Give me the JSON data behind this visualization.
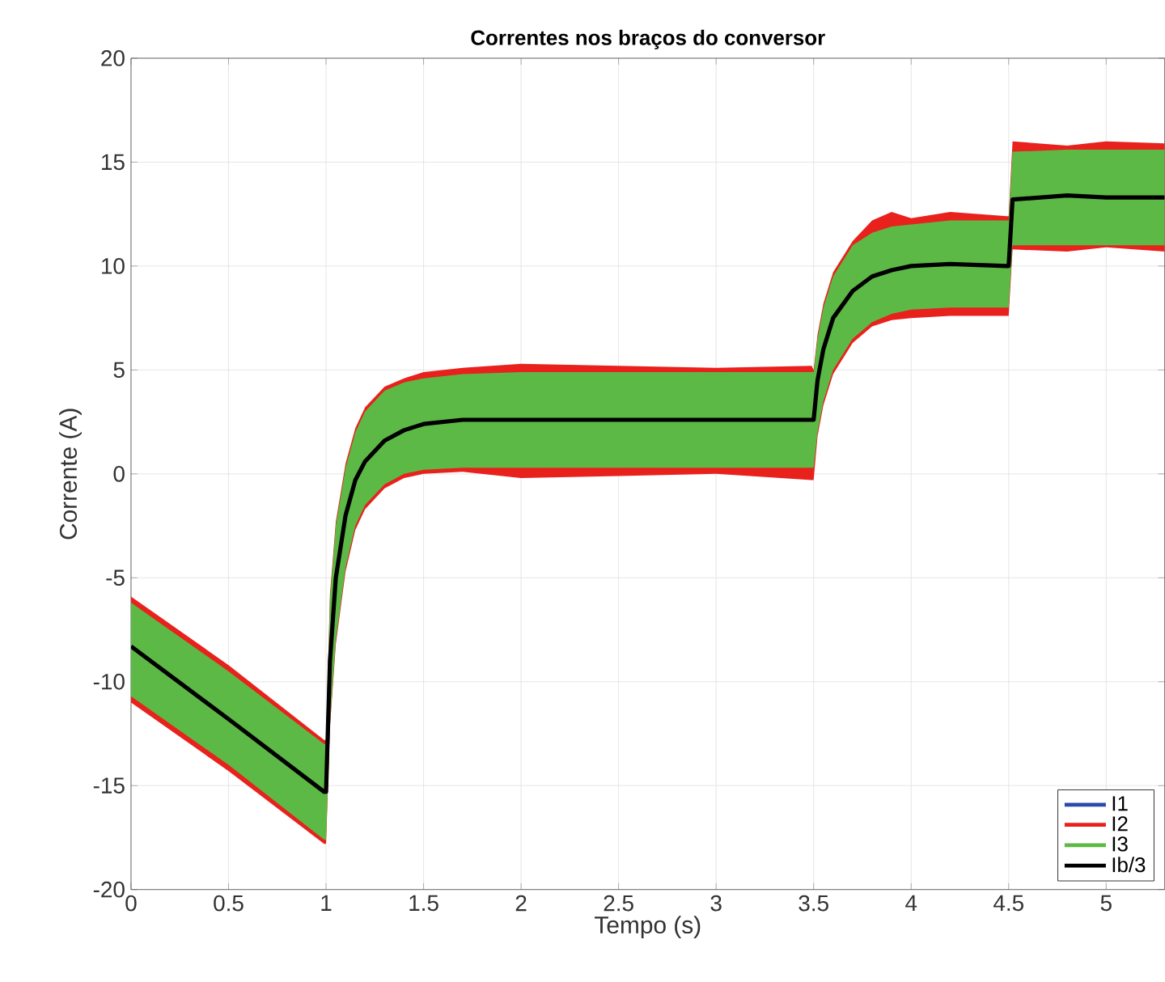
{
  "chart_data": {
    "type": "line",
    "title": "Correntes nos braços do conversor",
    "xlabel": "Tempo (s)",
    "ylabel": "Corrente (A)",
    "x": [
      0,
      0.5,
      0.99,
      1.0,
      1.02,
      1.05,
      1.1,
      1.15,
      1.2,
      1.3,
      1.4,
      1.5,
      1.7,
      2,
      2.5,
      3,
      3.49,
      3.5,
      3.52,
      3.55,
      3.6,
      3.7,
      3.8,
      3.9,
      4,
      4.2,
      4.49,
      4.5,
      4.52,
      4.8,
      5.0,
      5.3
    ],
    "series": [
      {
        "name": "I1",
        "color": "#2b4bab",
        "values": [
          null,
          null,
          null,
          null,
          null,
          null,
          null,
          null,
          null,
          null,
          null,
          null,
          null,
          null,
          null,
          null,
          null,
          null,
          null,
          null,
          null,
          null,
          null,
          null,
          null,
          null,
          null,
          null,
          null,
          null,
          null,
          null
        ]
      },
      {
        "name": "I2",
        "color": "#e8211d",
        "values": [
          null,
          null,
          null,
          null,
          null,
          null,
          null,
          null,
          null,
          null,
          null,
          null,
          null,
          null,
          null,
          null,
          null,
          null,
          null,
          null,
          null,
          null,
          null,
          null,
          null,
          null,
          null,
          null,
          null,
          null,
          null,
          null
        ],
        "upper": [
          -5.9,
          -9.2,
          -12.8,
          -12.8,
          -5.8,
          -2.3,
          0.5,
          2.2,
          3.2,
          4.2,
          4.6,
          4.9,
          5.1,
          5.3,
          5.2,
          5.1,
          5.2,
          5.0,
          6.7,
          8.2,
          9.7,
          11.2,
          12.2,
          12.6,
          12.3,
          12.6,
          12.4,
          12.4,
          16.0,
          15.8,
          16.0,
          15.9
        ],
        "lower": [
          -11.0,
          -14.3,
          -17.8,
          -17.8,
          -12.2,
          -8.2,
          -4.7,
          -2.7,
          -1.7,
          -0.7,
          -0.2,
          0.0,
          0.1,
          -0.2,
          -0.1,
          0.0,
          -0.3,
          -0.3,
          1.8,
          3.3,
          4.8,
          6.3,
          7.1,
          7.4,
          7.5,
          7.6,
          7.6,
          7.6,
          10.8,
          10.7,
          10.9,
          10.7
        ]
      },
      {
        "name": "I3",
        "color": "#5cb946",
        "values": [
          null,
          null,
          null,
          null,
          null,
          null,
          null,
          null,
          null,
          null,
          null,
          null,
          null,
          null,
          null,
          null,
          null,
          null,
          null,
          null,
          null,
          null,
          null,
          null,
          null,
          null,
          null,
          null,
          null,
          null,
          null,
          null
        ],
        "upper": [
          -6.2,
          -9.5,
          -13.0,
          -13.0,
          -6,
          -2.5,
          0.3,
          2,
          3,
          4,
          4.4,
          4.6,
          4.8,
          4.9,
          4.9,
          4.9,
          4.9,
          4.9,
          6.5,
          8,
          9.5,
          11,
          11.6,
          11.9,
          12,
          12.2,
          12.2,
          12.2,
          15.5,
          15.6,
          15.6,
          15.6
        ],
        "lower": [
          -10.7,
          -14.0,
          -17.6,
          -17.6,
          -12,
          -8,
          -4.5,
          -2.5,
          -1.5,
          -0.5,
          0,
          0.2,
          0.3,
          0.3,
          0.3,
          0.3,
          0.3,
          0.3,
          2,
          3.5,
          5,
          6.5,
          7.3,
          7.7,
          7.9,
          8,
          8,
          8,
          11,
          11,
          11,
          11
        ]
      },
      {
        "name": "Ib/3",
        "color": "#000000",
        "values": [
          -8.3,
          -11.8,
          -15.3,
          -15.3,
          -9,
          -5,
          -2,
          -0.3,
          0.6,
          1.6,
          2.1,
          2.4,
          2.6,
          2.6,
          2.6,
          2.6,
          2.6,
          2.6,
          4.5,
          6,
          7.5,
          8.8,
          9.5,
          9.8,
          10,
          10.1,
          10,
          10,
          13.2,
          13.4,
          13.3,
          13.3
        ]
      }
    ],
    "xlim": [
      0,
      5.3
    ],
    "ylim": [
      -20,
      20
    ],
    "xticks": [
      0,
      0.5,
      1,
      1.5,
      2,
      2.5,
      3,
      3.5,
      4,
      4.5,
      5
    ],
    "yticks": [
      -20,
      -15,
      -10,
      -5,
      0,
      5,
      10,
      15,
      20
    ],
    "grid": true,
    "legend": "bottom right"
  }
}
